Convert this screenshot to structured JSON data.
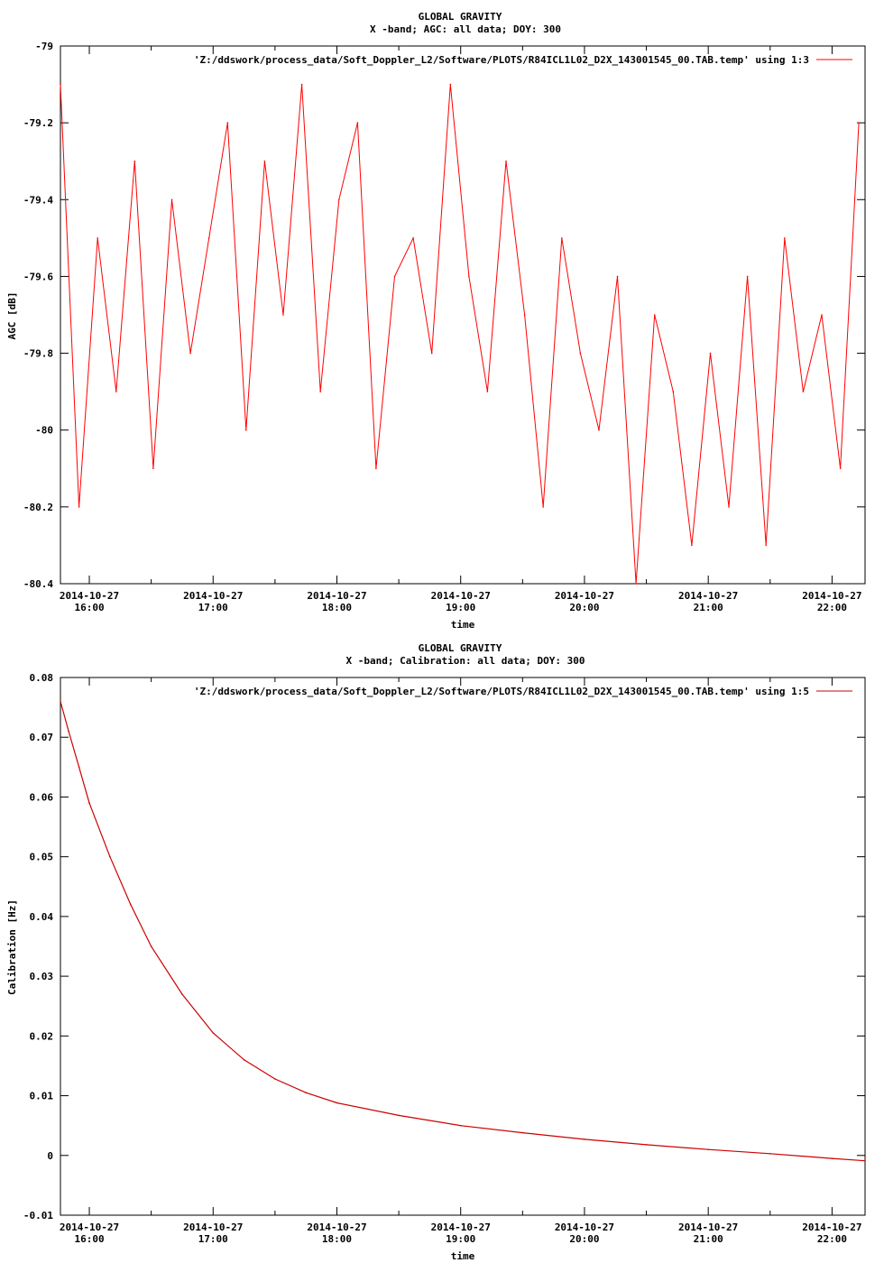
{
  "colors": {
    "series1": "#ff0000",
    "series2": "#cc0000",
    "axis": "#000000",
    "background": "#ffffff"
  },
  "chart_data": [
    {
      "type": "line",
      "title": "GLOBAL GRAVITY",
      "subtitle": "X -band; AGC: all data; DOY: 300",
      "xlabel": "time",
      "ylabel": "AGC [dB]",
      "x_range": [
        "2014-10-27 15:46",
        "2014-10-27 22:16"
      ],
      "ylim": [
        -80.4,
        -79.0
      ],
      "yticks": [
        -79,
        -79.2,
        -79.4,
        -79.6,
        -79.8,
        -80,
        -80.2,
        -80.4
      ],
      "ytick_labels": [
        "-79",
        "-79.2",
        "-79.4",
        "-79.6",
        "-79.8",
        "-80",
        "-80.2",
        "-80.4"
      ],
      "xticks": [
        "2014-10-27 16:00",
        "2014-10-27 17:00",
        "2014-10-27 18:00",
        "2014-10-27 19:00",
        "2014-10-27 20:00",
        "2014-10-27 21:00",
        "2014-10-27 22:00"
      ],
      "xtick_labels": [
        {
          "date": "2014-10-27",
          "time": "16:00"
        },
        {
          "date": "2014-10-27",
          "time": "17:00"
        },
        {
          "date": "2014-10-27",
          "time": "18:00"
        },
        {
          "date": "2014-10-27",
          "time": "19:00"
        },
        {
          "date": "2014-10-27",
          "time": "20:00"
        },
        {
          "date": "2014-10-27",
          "time": "21:00"
        },
        {
          "date": "2014-10-27",
          "time": "22:00"
        }
      ],
      "grid": false,
      "legend_position": "top-right",
      "series": [
        {
          "name": "'Z:/ddswork/process_data/Soft_Doppler_L2/Software/PLOTS/R84ICL1L02_D2X_143001545_00.TAB.temp' using 1:3",
          "x": [
            "2014-10-27 15:46",
            "2014-10-27 15:55",
            "2014-10-27 16:04",
            "2014-10-27 16:13",
            "2014-10-27 16:22",
            "2014-10-27 16:31",
            "2014-10-27 16:40",
            "2014-10-27 16:49",
            "2014-10-27 16:58",
            "2014-10-27 17:07",
            "2014-10-27 17:16",
            "2014-10-27 17:25",
            "2014-10-27 17:34",
            "2014-10-27 17:43",
            "2014-10-27 17:52",
            "2014-10-27 18:01",
            "2014-10-27 18:10",
            "2014-10-27 18:19",
            "2014-10-27 18:28",
            "2014-10-27 18:37",
            "2014-10-27 18:46",
            "2014-10-27 18:55",
            "2014-10-27 19:04",
            "2014-10-27 19:13",
            "2014-10-27 19:22",
            "2014-10-27 19:31",
            "2014-10-27 19:40",
            "2014-10-27 19:49",
            "2014-10-27 19:58",
            "2014-10-27 20:07",
            "2014-10-27 20:16",
            "2014-10-27 20:25",
            "2014-10-27 20:34",
            "2014-10-27 20:43",
            "2014-10-27 20:52",
            "2014-10-27 21:01",
            "2014-10-27 21:10",
            "2014-10-27 21:19",
            "2014-10-27 21:28",
            "2014-10-27 21:37",
            "2014-10-27 21:46",
            "2014-10-27 21:55",
            "2014-10-27 22:04",
            "2014-10-27 22:13"
          ],
          "values": [
            -79.1,
            -80.2,
            -79.5,
            -79.9,
            -79.3,
            -80.1,
            -79.4,
            -79.8,
            -79.5,
            -79.2,
            -80.0,
            -79.3,
            -79.7,
            -79.1,
            -79.9,
            -79.4,
            -79.2,
            -80.1,
            -79.6,
            -79.5,
            -79.8,
            -79.1,
            -79.6,
            -79.9,
            -79.3,
            -79.7,
            -80.2,
            -79.5,
            -79.8,
            -80.0,
            -79.6,
            -80.4,
            -79.7,
            -79.9,
            -80.3,
            -79.8,
            -80.2,
            -79.6,
            -80.3,
            -79.5,
            -79.9,
            -79.7,
            -80.1,
            -79.2
          ]
        }
      ]
    },
    {
      "type": "line",
      "title": "GLOBAL GRAVITY",
      "subtitle": "X -band; Calibration: all data; DOY: 300",
      "xlabel": "time",
      "ylabel": "Calibration [Hz]",
      "x_range": [
        "2014-10-27 15:46",
        "2014-10-27 22:16"
      ],
      "ylim": [
        -0.01,
        0.08
      ],
      "yticks": [
        -0.01,
        0,
        0.01,
        0.02,
        0.03,
        0.04,
        0.05,
        0.06,
        0.07,
        0.08
      ],
      "ytick_labels": [
        "-0.01",
        "0",
        "0.01",
        "0.02",
        "0.03",
        "0.04",
        "0.05",
        "0.06",
        "0.07",
        "0.08"
      ],
      "xticks": [
        "2014-10-27 16:00",
        "2014-10-27 17:00",
        "2014-10-27 18:00",
        "2014-10-27 19:00",
        "2014-10-27 20:00",
        "2014-10-27 21:00",
        "2014-10-27 22:00"
      ],
      "xtick_labels": [
        {
          "date": "2014-10-27",
          "time": "16:00"
        },
        {
          "date": "2014-10-27",
          "time": "17:00"
        },
        {
          "date": "2014-10-27",
          "time": "18:00"
        },
        {
          "date": "2014-10-27",
          "time": "19:00"
        },
        {
          "date": "2014-10-27",
          "time": "20:00"
        },
        {
          "date": "2014-10-27",
          "time": "21:00"
        },
        {
          "date": "2014-10-27",
          "time": "22:00"
        }
      ],
      "grid": false,
      "legend_position": "top-right",
      "series": [
        {
          "name": "'Z:/ddswork/process_data/Soft_Doppler_L2/Software/PLOTS/R84ICL1L02_D2X_143001545_00.TAB.temp' using 1:5",
          "x": [
            "2014-10-27 15:46",
            "2014-10-27 15:50",
            "2014-10-27 15:55",
            "2014-10-27 16:00",
            "2014-10-27 16:10",
            "2014-10-27 16:20",
            "2014-10-27 16:30",
            "2014-10-27 16:45",
            "2014-10-27 17:00",
            "2014-10-27 17:15",
            "2014-10-27 17:30",
            "2014-10-27 17:45",
            "2014-10-27 18:00",
            "2014-10-27 18:30",
            "2014-10-27 19:00",
            "2014-10-27 19:30",
            "2014-10-27 20:00",
            "2014-10-27 20:30",
            "2014-10-27 21:00",
            "2014-10-27 21:30",
            "2014-10-27 22:00",
            "2014-10-27 22:16"
          ],
          "values": [
            0.076,
            0.071,
            0.065,
            0.059,
            0.05,
            0.042,
            0.035,
            0.027,
            0.0205,
            0.016,
            0.0128,
            0.0105,
            0.0088,
            0.0067,
            0.005,
            0.0038,
            0.0027,
            0.0018,
            0.001,
            0.0003,
            -0.0005,
            -0.0009
          ]
        }
      ]
    }
  ]
}
